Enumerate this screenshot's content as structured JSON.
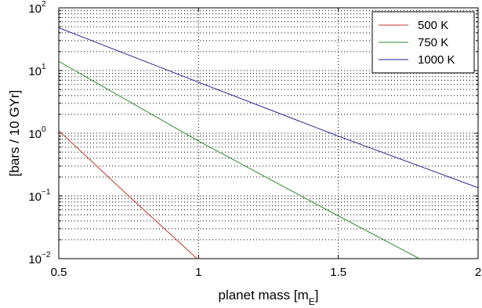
{
  "chart_data": {
    "type": "line",
    "title": "",
    "xlabel": "planet mass [m",
    "xlabel_sub": "E",
    "xlabel_suffix": "]",
    "ylabel": "[bars / 10 GYr]",
    "xlim": [
      0.5,
      2
    ],
    "ylim": [
      0.01,
      100
    ],
    "yscale": "log",
    "grid": true,
    "legend_position": "top-right",
    "x_ticks": [
      0.5,
      1,
      1.5,
      2
    ],
    "x_tick_labels": [
      "0.5",
      "1",
      "1.5",
      "2"
    ],
    "y_ticks": [
      {
        "value": 0.01,
        "base": "10",
        "exp": "−2"
      },
      {
        "value": 0.1,
        "base": "10",
        "exp": "−1"
      },
      {
        "value": 1,
        "base": "10",
        "exp": "0"
      },
      {
        "value": 10,
        "base": "10",
        "exp": "1"
      },
      {
        "value": 100,
        "base": "10",
        "exp": "2"
      }
    ],
    "series": [
      {
        "name": "500 K",
        "color": "#c0392b",
        "x": [
          0.5,
          0.75,
          1.0
        ],
        "y": [
          1.1,
          0.1,
          0.0095
        ]
      },
      {
        "name": "750 K",
        "color": "#2e8b2e",
        "x": [
          0.5,
          1.0,
          1.5,
          1.79
        ],
        "y": [
          14,
          0.75,
          0.048,
          0.01
        ]
      },
      {
        "name": "1000 K",
        "color": "#1f1f8f",
        "x": [
          0.5,
          1.0,
          1.5,
          2.0
        ],
        "y": [
          48,
          6.5,
          0.9,
          0.135
        ]
      }
    ]
  }
}
